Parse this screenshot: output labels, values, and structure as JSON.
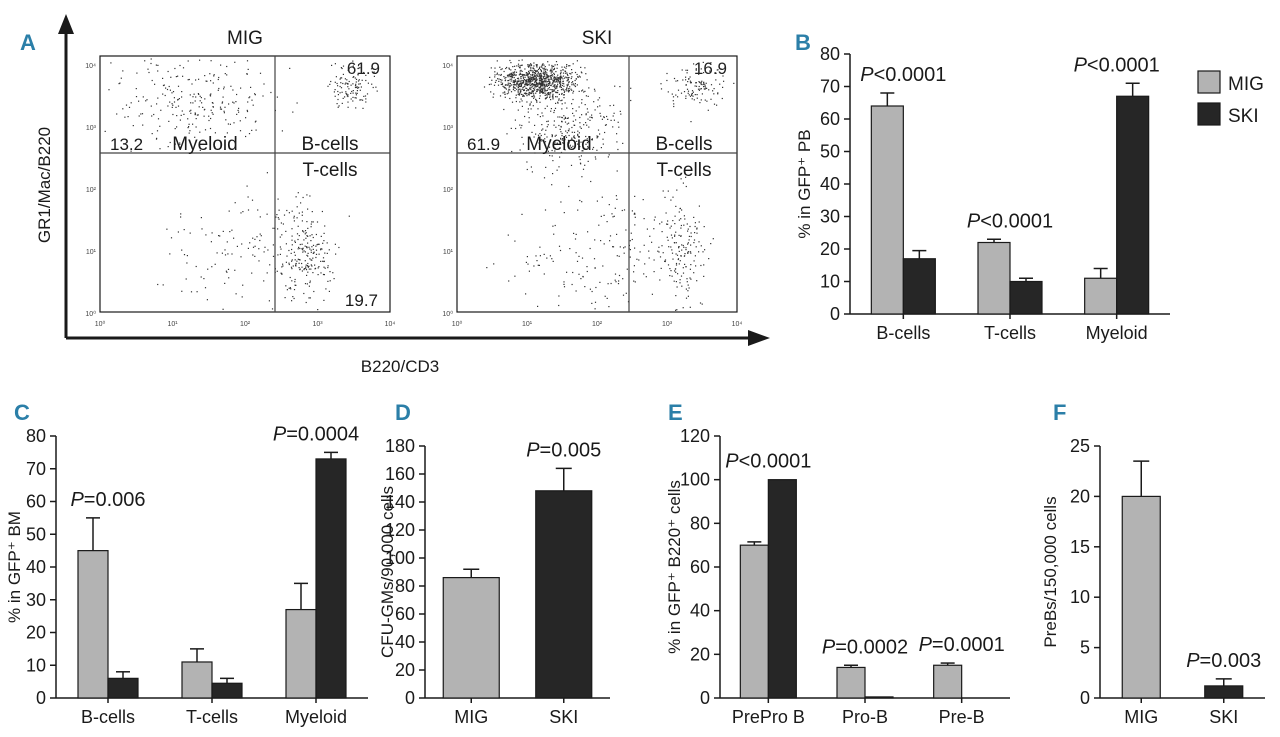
{
  "colors": {
    "mig": "#b3b3b3",
    "ski": "#262626",
    "panel_label": "#2b7fa8",
    "axis": "#1a1a1a"
  },
  "legend": {
    "mig": "MIG",
    "ski": "SKI"
  },
  "panel_a": {
    "label": "A",
    "y_axis_label": "GR1/Mac/B220",
    "x_axis_label": "B220/CD3",
    "plots": [
      {
        "title": "MIG",
        "upper_right": "61.9",
        "upper_left": "13.2",
        "lower_right": "19.7",
        "quadrant_labels": [
          "Myeloid",
          "B-cells",
          "T-cells"
        ]
      },
      {
        "title": "SKI",
        "upper_right": "16.9",
        "upper_left": "61.9",
        "lower_right": "",
        "quadrant_labels": [
          "Myeloid",
          "B-cells",
          "T-cells"
        ]
      }
    ],
    "y_ticks": [
      "10⁴",
      "10³",
      "10²",
      "10¹",
      "10⁰"
    ],
    "x_ticks": [
      "10⁰",
      "10¹",
      "10²",
      "10³",
      "10⁴"
    ]
  },
  "chart_data": [
    {
      "panel": "B",
      "type": "bar",
      "ylabel": "% in GFP⁺ PB",
      "ylim": [
        0,
        80
      ],
      "yticks": [
        0,
        10,
        20,
        30,
        40,
        50,
        60,
        70,
        80
      ],
      "categories": [
        "B-cells",
        "T-cells",
        "Myeloid"
      ],
      "series": [
        {
          "name": "MIG",
          "values": [
            64,
            22,
            11
          ],
          "errors": [
            4,
            1,
            3
          ]
        },
        {
          "name": "SKI",
          "values": [
            17,
            10,
            67
          ],
          "errors": [
            2.5,
            1,
            4
          ]
        }
      ],
      "annotations": [
        {
          "category": "B-cells",
          "text": "P<0.0001"
        },
        {
          "category": "T-cells",
          "text": "P<0.0001"
        },
        {
          "category": "Myeloid",
          "text": "P<0.0001"
        }
      ],
      "legend": "top-right"
    },
    {
      "panel": "C",
      "type": "bar",
      "ylabel": "% in GFP⁺ BM",
      "ylim": [
        0,
        80
      ],
      "yticks": [
        0,
        10,
        20,
        30,
        40,
        50,
        60,
        70,
        80
      ],
      "categories": [
        "B-cells",
        "T-cells",
        "Myeloid"
      ],
      "series": [
        {
          "name": "MIG",
          "values": [
            45,
            11,
            27
          ],
          "errors": [
            10,
            4,
            8
          ]
        },
        {
          "name": "SKI",
          "values": [
            6,
            4.5,
            73
          ],
          "errors": [
            2,
            1.5,
            2
          ]
        }
      ],
      "annotations": [
        {
          "category": "B-cells",
          "text": "P=0.006"
        },
        {
          "category": "Myeloid",
          "text": "P=0.0004"
        }
      ]
    },
    {
      "panel": "D",
      "type": "bar",
      "ylabel": "CFU-GMs/90,000 cells",
      "ylim": [
        0,
        180
      ],
      "yticks": [
        0,
        20,
        40,
        60,
        80,
        100,
        120,
        140,
        160,
        180
      ],
      "categories": [
        "MIG",
        "SKI"
      ],
      "values": [
        86,
        148
      ],
      "errors": [
        6,
        16
      ],
      "annotations": [
        {
          "category": "SKI",
          "text": "P=0.005"
        }
      ]
    },
    {
      "panel": "E",
      "type": "bar",
      "ylabel": "% in GFP⁺ B220⁺ cells",
      "ylim": [
        0,
        120
      ],
      "yticks": [
        0,
        20,
        40,
        60,
        80,
        100,
        120
      ],
      "categories": [
        "PrePro B",
        "Pro-B",
        "Pre-B"
      ],
      "series": [
        {
          "name": "MIG",
          "values": [
            70,
            14,
            15
          ],
          "errors": [
            1.5,
            1,
            1
          ]
        },
        {
          "name": "SKI",
          "values": [
            100,
            0.5,
            0
          ],
          "errors": [
            0,
            0,
            0
          ]
        }
      ],
      "annotations": [
        {
          "category": "PrePro B",
          "text": "P<0.0001"
        },
        {
          "category": "Pro-B",
          "text": "P=0.0002"
        },
        {
          "category": "Pre-B",
          "text": "P=0.0001"
        }
      ]
    },
    {
      "panel": "F",
      "type": "bar",
      "ylabel": "PreBs/150,000 cells",
      "ylim": [
        0,
        25
      ],
      "yticks": [
        0,
        5,
        10,
        15,
        20,
        25
      ],
      "categories": [
        "MIG",
        "SKI"
      ],
      "values": [
        20,
        1.2
      ],
      "errors": [
        3.5,
        0.7
      ],
      "annotations": [
        {
          "category": "SKI",
          "text": "P=0.003"
        }
      ]
    }
  ]
}
